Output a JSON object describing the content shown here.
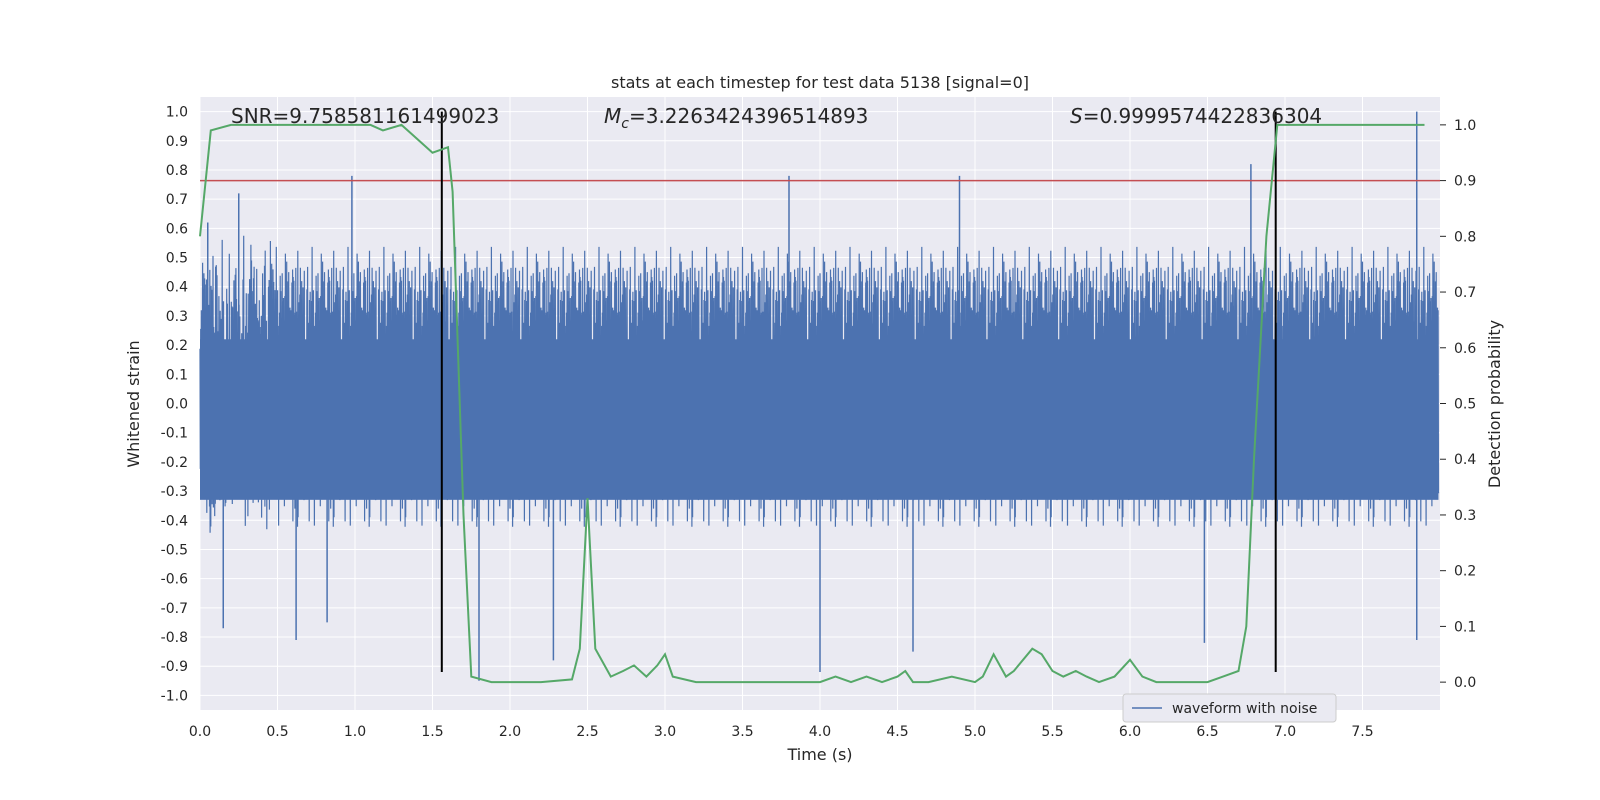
{
  "chart_data": {
    "type": "line",
    "title": "stats at each timestep for test data 5138 [signal=0]",
    "xlabel": "Time (s)",
    "ylabel": "Whitened strain",
    "y2label": "Detection probability",
    "xlim": [
      0.0,
      8.0
    ],
    "ylim": [
      -1.05,
      1.05
    ],
    "y2lim": [
      -0.05,
      1.05
    ],
    "xticks": [
      "0.0",
      "0.5",
      "1.0",
      "1.5",
      "2.0",
      "2.5",
      "3.0",
      "3.5",
      "4.0",
      "4.5",
      "5.0",
      "5.5",
      "6.0",
      "6.5",
      "7.0",
      "7.5"
    ],
    "yticks": [
      "1.0",
      "0.9",
      "0.8",
      "0.7",
      "0.6",
      "0.5",
      "0.4",
      "0.3",
      "0.2",
      "0.1",
      "0.0",
      "-0.1",
      "-0.2",
      "-0.3",
      "-0.4",
      "-0.5",
      "-0.6",
      "-0.7",
      "-0.8",
      "-0.9",
      "-1.0"
    ],
    "y2ticks": [
      "1.0",
      "0.9",
      "0.8",
      "0.7",
      "0.6",
      "0.5",
      "0.4",
      "0.3",
      "0.2",
      "0.1",
      "0.0"
    ],
    "grid": true,
    "annotations": {
      "snr": "SNR=9.758581161499023",
      "mc_symbol": "M",
      "mc_sub": "c",
      "mc_value": "=3.2263424396514893",
      "s_symbol": "S",
      "s_value": "=0.9999574422836304"
    },
    "threshold": 0.9,
    "vlines": [
      1.56,
      6.94
    ],
    "legend": {
      "label": "waveform with noise",
      "placement": "lower-right"
    },
    "colors": {
      "waveform": "#4c72b0",
      "probability": "#55a868",
      "threshold": "#c44e52",
      "vline": "#000000",
      "background": "#eaeaf2",
      "grid": "#ffffff"
    },
    "series": [
      {
        "name": "waveform with noise",
        "kind": "noise",
        "x_range": [
          0.0,
          7.99
        ],
        "typical_envelope": [
          -0.45,
          0.6
        ],
        "peaks": [
          {
            "x": 0.05,
            "y": 0.62
          },
          {
            "x": 0.15,
            "y": -0.77
          },
          {
            "x": 0.25,
            "y": 0.72
          },
          {
            "x": 0.62,
            "y": -0.81
          },
          {
            "x": 0.82,
            "y": -0.75
          },
          {
            "x": 0.98,
            "y": 0.78
          },
          {
            "x": 1.8,
            "y": -0.95
          },
          {
            "x": 2.28,
            "y": -0.88
          },
          {
            "x": 3.8,
            "y": 0.78
          },
          {
            "x": 4.0,
            "y": -0.92
          },
          {
            "x": 4.6,
            "y": -0.85
          },
          {
            "x": 4.9,
            "y": 0.78
          },
          {
            "x": 6.48,
            "y": -0.82
          },
          {
            "x": 6.78,
            "y": 0.82
          },
          {
            "x": 7.85,
            "y": 1.0
          },
          {
            "x": 7.85,
            "y": -0.81
          }
        ]
      },
      {
        "name": "",
        "axis": "y2",
        "x": [
          0.0,
          0.07,
          0.2,
          0.4,
          0.6,
          0.8,
          1.0,
          1.1,
          1.18,
          1.3,
          1.38,
          1.5,
          1.6,
          1.63,
          1.7,
          1.75,
          1.88,
          2.0,
          2.2,
          2.4,
          2.45,
          2.5,
          2.55,
          2.65,
          2.73,
          2.8,
          2.88,
          2.95,
          3.0,
          3.05,
          3.2,
          3.5,
          4.0,
          4.1,
          4.2,
          4.3,
          4.4,
          4.5,
          4.55,
          4.6,
          4.7,
          4.85,
          5.0,
          5.05,
          5.12,
          5.2,
          5.25,
          5.37,
          5.43,
          5.5,
          5.57,
          5.65,
          5.72,
          5.8,
          5.9,
          6.0,
          6.08,
          6.17,
          6.3,
          6.5,
          6.6,
          6.7,
          6.75,
          6.8,
          6.88,
          6.95,
          7.0,
          7.1,
          7.3,
          7.5,
          7.7,
          7.9
        ],
        "values": [
          0.8,
          0.99,
          1.0,
          1.0,
          1.0,
          1.0,
          1.0,
          1.0,
          0.99,
          1.0,
          0.98,
          0.95,
          0.96,
          0.88,
          0.3,
          0.01,
          0.0,
          0.0,
          0.0,
          0.005,
          0.06,
          0.33,
          0.06,
          0.01,
          0.02,
          0.03,
          0.01,
          0.03,
          0.05,
          0.01,
          0.0,
          0.0,
          0.0,
          0.01,
          0.0,
          0.01,
          0.0,
          0.01,
          0.02,
          0.0,
          0.0,
          0.01,
          0.0,
          0.01,
          0.05,
          0.01,
          0.02,
          0.06,
          0.05,
          0.02,
          0.01,
          0.02,
          0.01,
          0.0,
          0.01,
          0.04,
          0.01,
          0.0,
          0.0,
          0.0,
          0.01,
          0.02,
          0.1,
          0.4,
          0.8,
          1.0,
          1.0,
          1.0,
          1.0,
          1.0,
          1.0,
          1.0
        ]
      }
    ]
  }
}
